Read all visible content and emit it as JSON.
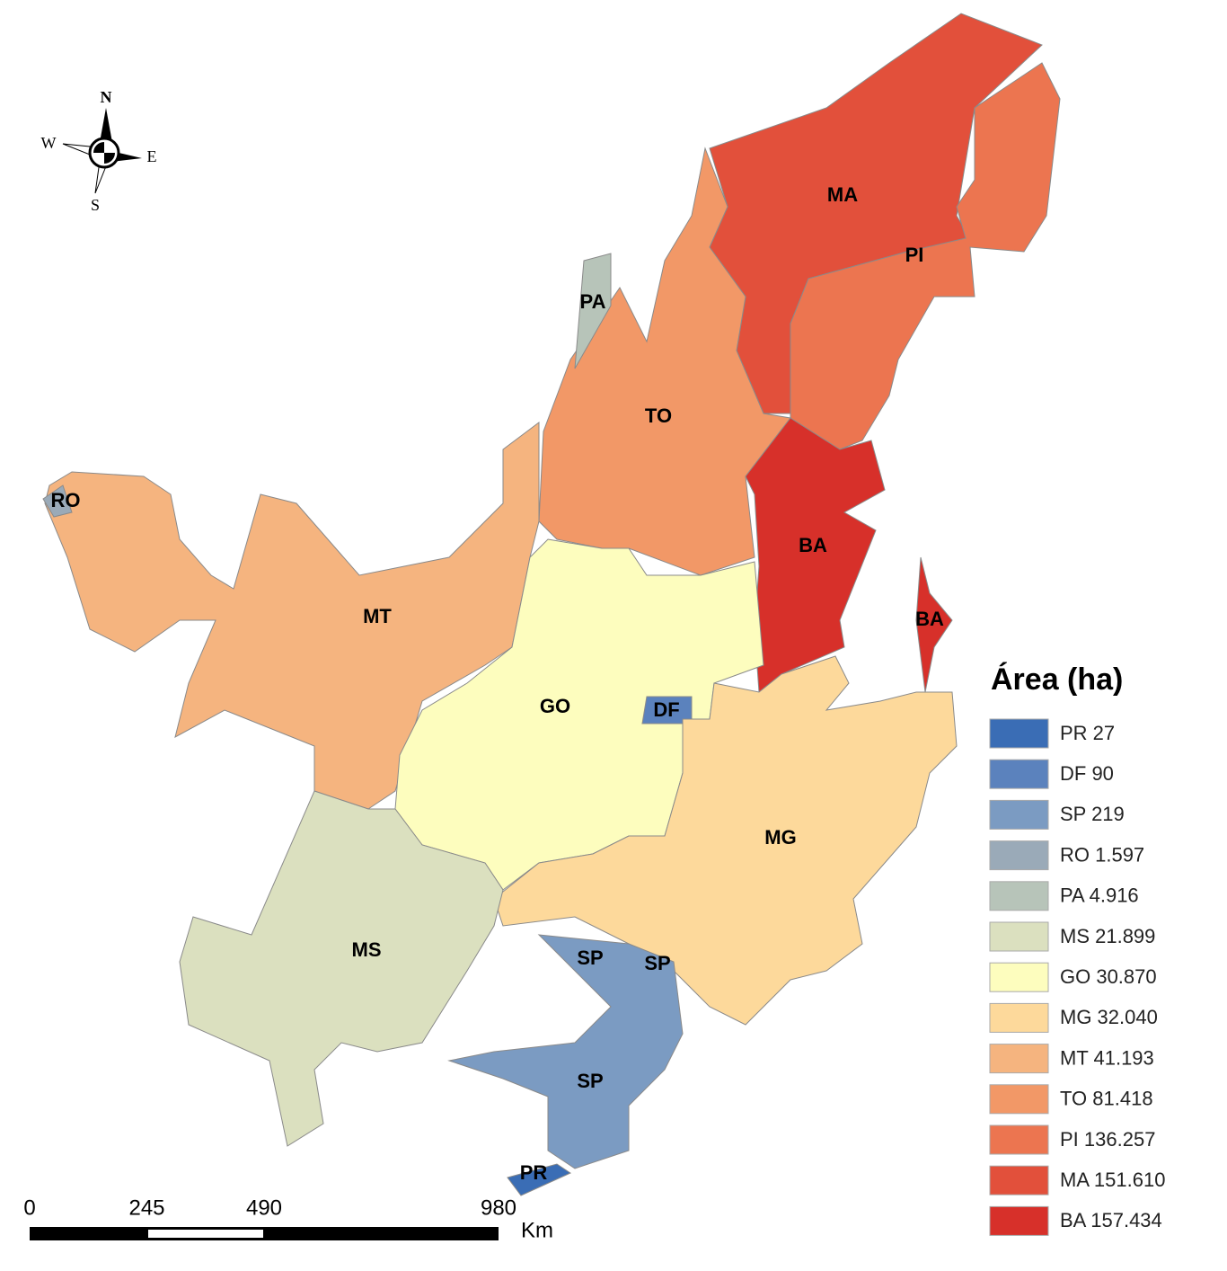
{
  "compass": {
    "n": "N",
    "s": "S",
    "e": "E",
    "w": "W"
  },
  "map_labels": [
    "MA",
    "PI",
    "PA",
    "TO",
    "RO",
    "BA",
    "MT",
    "GO",
    "DF",
    "BA",
    "MG",
    "MS",
    "SP",
    "SP",
    "SP",
    "PR"
  ],
  "legend": {
    "title": "Área (ha)",
    "items": [
      {
        "label": "PR 27",
        "color": "#3a6db5"
      },
      {
        "label": "DF 90",
        "color": "#5b82bd"
      },
      {
        "label": "SP 219",
        "color": "#7b9bc2"
      },
      {
        "label": "RO 1.597",
        "color": "#9aaab8"
      },
      {
        "label": "PA 4.916",
        "color": "#b7c4b9"
      },
      {
        "label": "MS 21.899",
        "color": "#dbe0bf"
      },
      {
        "label": "GO 30.870",
        "color": "#fdfdbe"
      },
      {
        "label": "MG 32.040",
        "color": "#fdd99b"
      },
      {
        "label": "MT 41.193",
        "color": "#f5b47f"
      },
      {
        "label": "TO 81.418",
        "color": "#f29867"
      },
      {
        "label": "PI 136.257",
        "color": "#ec7550"
      },
      {
        "label": "MA 151.610",
        "color": "#e2503b"
      },
      {
        "label": "BA 157.434",
        "color": "#d7302a"
      }
    ]
  },
  "scale_bar": {
    "ticks": [
      0,
      245,
      490,
      980
    ],
    "unit": "Km"
  }
}
